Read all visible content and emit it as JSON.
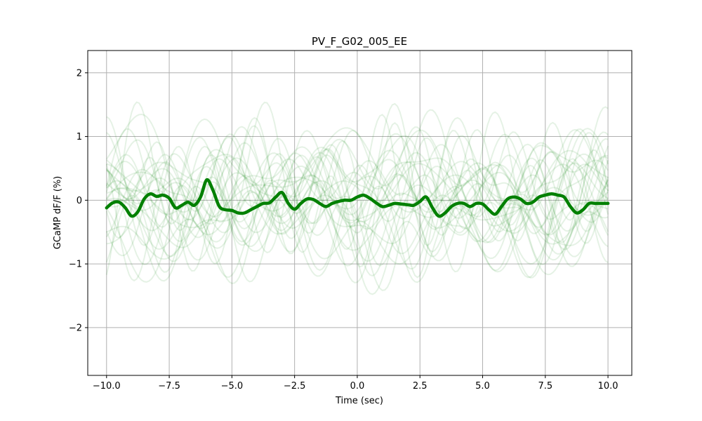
{
  "chart_data": {
    "type": "line",
    "title": "PV_F_G02_005_EE",
    "xlabel": "Time (sec)",
    "ylabel": "GCaMP dF/F (%)",
    "xlim": [
      -10.75,
      10.95
    ],
    "ylim": [
      -2.75,
      2.35
    ],
    "grid": true,
    "xticks": [
      -10.0,
      -7.5,
      -5.0,
      -2.5,
      0.0,
      2.5,
      5.0,
      7.5,
      10.0
    ],
    "xtick_labels": [
      "−10.0",
      "−7.5",
      "−5.0",
      "−2.5",
      "0.0",
      "2.5",
      "5.0",
      "7.5",
      "10.0"
    ],
    "yticks": [
      -2,
      -1,
      0,
      1,
      2
    ],
    "ytick_labels": [
      "−2",
      "−1",
      "0",
      "1",
      "2"
    ],
    "colors": {
      "mean": "#008000",
      "trials": "#008000",
      "grid": "#b0b0b0"
    },
    "trials_alpha": 0.1,
    "trial_count": 30,
    "mean_series": {
      "x": [
        -10.0,
        -9.75,
        -9.5,
        -9.25,
        -9.0,
        -8.75,
        -8.5,
        -8.25,
        -8.0,
        -7.75,
        -7.5,
        -7.25,
        -7.0,
        -6.75,
        -6.5,
        -6.25,
        -6.0,
        -5.75,
        -5.5,
        -5.25,
        -5.0,
        -4.75,
        -4.5,
        -4.25,
        -4.0,
        -3.75,
        -3.5,
        -3.25,
        -3.0,
        -2.75,
        -2.5,
        -2.25,
        -2.0,
        -1.75,
        -1.5,
        -1.25,
        -1.0,
        -0.75,
        -0.5,
        -0.25,
        0.0,
        0.25,
        0.5,
        0.75,
        1.0,
        1.25,
        1.5,
        1.75,
        2.0,
        2.25,
        2.5,
        2.75,
        3.0,
        3.25,
        3.5,
        3.75,
        4.0,
        4.25,
        4.5,
        4.75,
        5.0,
        5.25,
        5.5,
        5.75,
        6.0,
        6.25,
        6.5,
        6.75,
        7.0,
        7.25,
        7.5,
        7.75,
        8.0,
        8.25,
        8.5,
        8.75,
        9.0,
        9.25,
        9.5,
        9.75,
        10.0
      ],
      "y": [
        -0.12,
        -0.04,
        -0.03,
        -0.12,
        -0.25,
        -0.18,
        0.02,
        0.1,
        0.06,
        0.08,
        0.03,
        -0.12,
        -0.08,
        -0.03,
        -0.08,
        0.05,
        0.32,
        0.15,
        -0.1,
        -0.15,
        -0.16,
        -0.2,
        -0.2,
        -0.15,
        -0.1,
        -0.05,
        -0.04,
        0.05,
        0.12,
        -0.05,
        -0.14,
        -0.05,
        0.02,
        0.01,
        -0.05,
        -0.1,
        -0.05,
        -0.02,
        0.0,
        0.0,
        0.05,
        0.08,
        0.03,
        -0.04,
        -0.1,
        -0.08,
        -0.05,
        -0.06,
        -0.07,
        -0.08,
        -0.02,
        0.05,
        -0.12,
        -0.25,
        -0.2,
        -0.1,
        -0.05,
        -0.05,
        -0.1,
        -0.05,
        -0.06,
        -0.15,
        -0.22,
        -0.1,
        0.02,
        0.05,
        0.02,
        -0.05,
        -0.03,
        0.05,
        0.08,
        0.1,
        0.08,
        0.05,
        -0.1,
        -0.2,
        -0.15,
        -0.05,
        -0.05,
        -0.05,
        -0.05
      ]
    }
  }
}
